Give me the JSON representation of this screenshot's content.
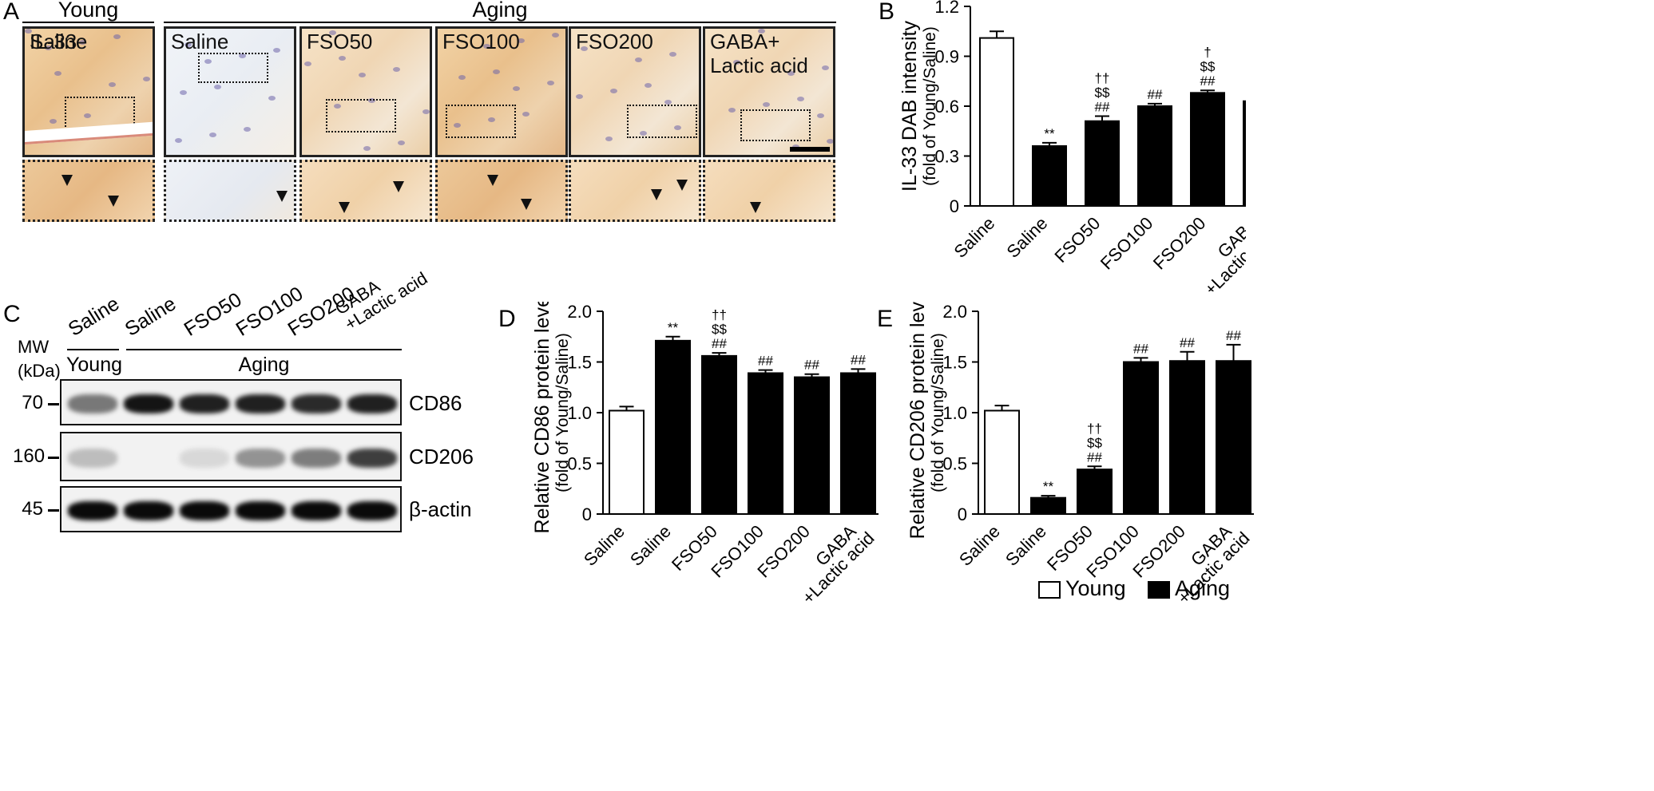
{
  "panel_labels": {
    "A": "A",
    "B": "B",
    "C": "C",
    "D": "D",
    "E": "E"
  },
  "panelA": {
    "group_young": "Young",
    "group_aging": "Aging",
    "image_labels": [
      "Saline",
      "Saline",
      "FSO50",
      "FSO100",
      "FSO200",
      "GABA+\nLactic acid"
    ],
    "stain_label": "IL-33"
  },
  "panelC": {
    "lane_labels": [
      "Saline",
      "Saline",
      "FSO50",
      "FSO100",
      "FSO200",
      "GABA\n+Lactic acid"
    ],
    "group_young": "Young",
    "group_aging": "Aging",
    "mw_title": "MW\n(kDa)",
    "mw_values": [
      "70",
      "160",
      "45"
    ],
    "protein_labels": [
      "CD86",
      "CD206",
      "β-actin"
    ]
  },
  "legend": {
    "young": "Young",
    "aging": "Aging"
  },
  "chart_data": [
    {
      "id": "B",
      "type": "bar",
      "categories": [
        "Saline",
        "Saline",
        "FSO50",
        "FSO100",
        "FSO200",
        "GABA\n+Lactic acid"
      ],
      "values": [
        1.01,
        0.36,
        0.51,
        0.6,
        0.68,
        0.63
      ],
      "errors": [
        0.04,
        0.02,
        0.03,
        0.015,
        0.015,
        0.02
      ],
      "fills": [
        "#ffffff",
        "#000000",
        "#000000",
        "#000000",
        "#000000",
        "#000000"
      ],
      "annotations": [
        "",
        "**",
        "††\n$$\n##",
        "##",
        "†\n$$\n##",
        "##"
      ],
      "ylabel": "IL-33 DAB intensity",
      "ylabel2": "(fold of Young/Saline)",
      "ylim": [
        0,
        1.2
      ],
      "yticks": [
        "0",
        "0.3",
        "0.6",
        "0.9",
        "1.2"
      ]
    },
    {
      "id": "D",
      "type": "bar",
      "categories": [
        "Saline",
        "Saline",
        "FSO50",
        "FSO100",
        "FSO200",
        "GABA\n+Lactic acid"
      ],
      "values": [
        1.02,
        1.71,
        1.56,
        1.39,
        1.35,
        1.39
      ],
      "errors": [
        0.04,
        0.04,
        0.03,
        0.03,
        0.03,
        0.04
      ],
      "fills": [
        "#ffffff",
        "#000000",
        "#000000",
        "#000000",
        "#000000",
        "#000000"
      ],
      "annotations": [
        "",
        "**",
        "††\n$$\n##",
        "##",
        "##",
        "##"
      ],
      "ylabel": "Relative CD86 protein level",
      "ylabel2": "(fold of Young/Saline)",
      "ylim": [
        0,
        2.0
      ],
      "yticks": [
        "0",
        "0.5",
        "1.0",
        "1.5",
        "2.0"
      ]
    },
    {
      "id": "E",
      "type": "bar",
      "categories": [
        "Saline",
        "Saline",
        "FSO50",
        "FSO100",
        "FSO200",
        "GABA\n+Lactic acid"
      ],
      "values": [
        1.02,
        0.16,
        0.44,
        1.5,
        1.51,
        1.51
      ],
      "errors": [
        0.05,
        0.02,
        0.03,
        0.04,
        0.09,
        0.16
      ],
      "fills": [
        "#ffffff",
        "#000000",
        "#000000",
        "#000000",
        "#000000",
        "#000000"
      ],
      "annotations": [
        "",
        "**",
        "††\n$$\n##",
        "##",
        "##",
        "##"
      ],
      "ylabel": "Relative CD206 protein level",
      "ylabel2": "(fold of Young/Saline)",
      "ylim": [
        0,
        2.0
      ],
      "yticks": [
        "0",
        "0.5",
        "1.0",
        "1.5",
        "2.0"
      ]
    }
  ]
}
